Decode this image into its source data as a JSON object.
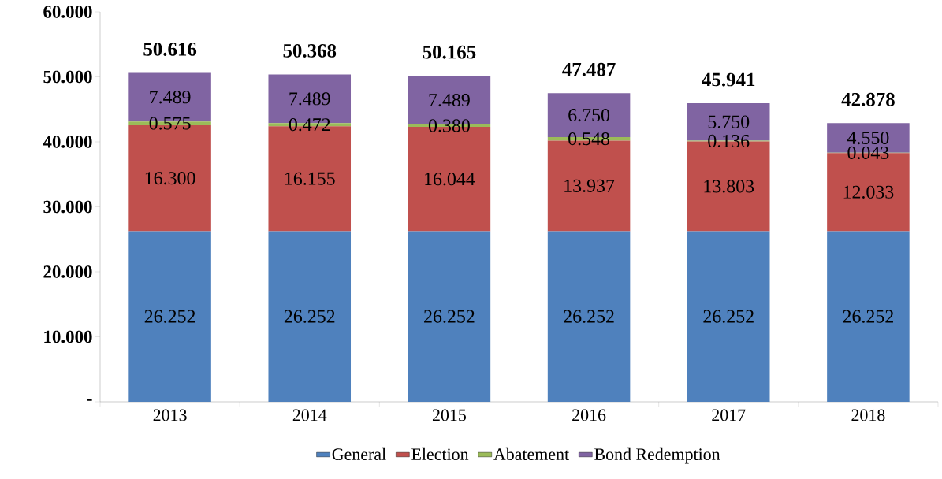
{
  "chart_data": {
    "type": "bar",
    "stacked": true,
    "legend": "bottom",
    "categories": [
      "2013",
      "2014",
      "2015",
      "2016",
      "2017",
      "2018"
    ],
    "ylim": [
      0,
      60
    ],
    "yticks": [
      {
        "value": 0,
        "label": "-"
      },
      {
        "value": 10,
        "label": "10.000"
      },
      {
        "value": 20,
        "label": "20.000"
      },
      {
        "value": 30,
        "label": "30.000"
      },
      {
        "value": 40,
        "label": "40.000"
      },
      {
        "value": 50,
        "label": "50.000"
      },
      {
        "value": 60,
        "label": "60.000"
      }
    ],
    "series": [
      {
        "name": "General",
        "color": "#4f81bd",
        "values": [
          26.252,
          26.252,
          26.252,
          26.252,
          26.252,
          26.252
        ],
        "value_labels": [
          "26.252",
          "26.252",
          "26.252",
          "26.252",
          "26.252",
          "26.252"
        ]
      },
      {
        "name": "Election",
        "color": "#c0504d",
        "values": [
          16.3,
          16.155,
          16.044,
          13.937,
          13.803,
          12.033
        ],
        "value_labels": [
          "16.300",
          "16.155",
          "16.044",
          "13.937",
          "13.803",
          "12.033"
        ]
      },
      {
        "name": "Abatement",
        "color": "#9bbb59",
        "values": [
          0.575,
          0.472,
          0.38,
          0.548,
          0.136,
          0.043
        ],
        "value_labels": [
          "0.575",
          "0.472",
          "0.380",
          "0.548",
          "0.136",
          "0.043"
        ]
      },
      {
        "name": "Bond Redemption",
        "color": "#8064a2",
        "values": [
          7.489,
          7.489,
          7.489,
          6.75,
          5.75,
          4.55
        ],
        "value_labels": [
          "7.489",
          "7.489",
          "7.489",
          "6.750",
          "5.750",
          "4.550"
        ]
      }
    ],
    "totals": [
      "50.616",
      "50.368",
      "50.165",
      "47.487",
      "45.941",
      "42.878"
    ]
  }
}
